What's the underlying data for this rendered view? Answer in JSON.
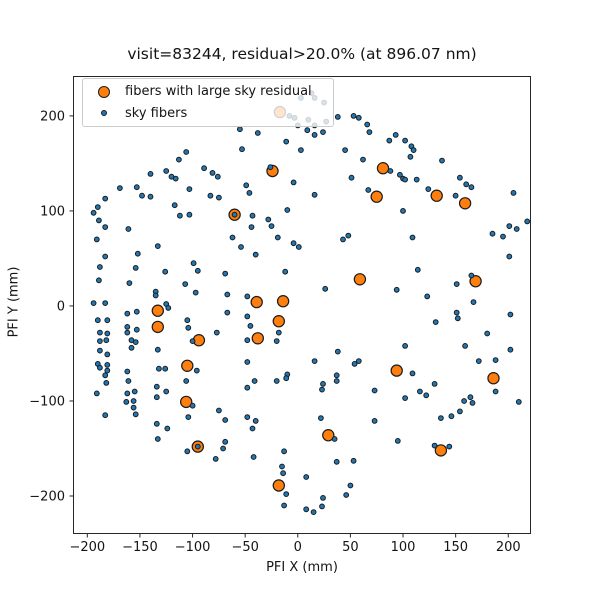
{
  "chart_data": {
    "type": "scatter",
    "title": "visit=83244, residual>20.0% (at 896.07 nm)",
    "xlabel": "PFI X (mm)",
    "ylabel": "PFI Y (mm)",
    "xlim": [
      -213.6,
      221.6
    ],
    "ylim": [
      -240,
      242
    ],
    "grid": false,
    "legend_position": "upper left",
    "xticks": [
      {
        "v": -200,
        "label": "−200"
      },
      {
        "v": -150,
        "label": "−150"
      },
      {
        "v": -100,
        "label": "−100"
      },
      {
        "v": -50,
        "label": "−50"
      },
      {
        "v": 0,
        "label": "0"
      },
      {
        "v": 50,
        "label": "50"
      },
      {
        "v": 100,
        "label": "100"
      },
      {
        "v": 150,
        "label": "150"
      },
      {
        "v": 200,
        "label": "200"
      }
    ],
    "yticks": [
      {
        "v": -200,
        "label": "−200"
      },
      {
        "v": -100,
        "label": "−100"
      },
      {
        "v": 0,
        "label": "0"
      },
      {
        "v": 100,
        "label": "100"
      },
      {
        "v": 200,
        "label": "200"
      }
    ],
    "colors": {
      "residual_fill": "#ff7f0e",
      "sky_fill": "#1f77b4",
      "edge": "#1c1c1c",
      "spine": "#262626"
    },
    "series": [
      {
        "name": "fibers with large sky residual",
        "marker": "circle-large",
        "marker_radius": 5.6,
        "color": "#ff7f0e",
        "points": [
          [
            -24,
            142
          ],
          [
            -60,
            96
          ],
          [
            81,
            145
          ],
          [
            75,
            115
          ],
          [
            132,
            116
          ],
          [
            159,
            108
          ],
          [
            169,
            26
          ],
          [
            59,
            28
          ],
          [
            -133,
            -5
          ],
          [
            -133,
            -22
          ],
          [
            -94,
            -36
          ],
          [
            -105,
            -63
          ],
          [
            -39,
            4
          ],
          [
            -14,
            5
          ],
          [
            -18,
            -16
          ],
          [
            -38,
            -34
          ],
          [
            94,
            -68
          ],
          [
            186,
            -76
          ],
          [
            -106,
            -101
          ],
          [
            -95,
            -148
          ],
          [
            29,
            -136
          ],
          [
            -18,
            -189
          ],
          [
            136,
            -152
          ],
          [
            -17,
            204
          ]
        ]
      },
      {
        "name": "sky fibers",
        "marker": "circle-small",
        "marker_radius": 2.4,
        "color": "#1f77b4",
        "points": [
          [
            -106,
            162
          ],
          [
            -113,
            154
          ],
          [
            -125,
            142
          ],
          [
            -120,
            136
          ],
          [
            -116,
            134
          ],
          [
            -140,
            139
          ],
          [
            -89,
            145
          ],
          [
            -81,
            140
          ],
          [
            -76,
            136
          ],
          [
            -169,
            124
          ],
          [
            -153,
            125
          ],
          [
            -148,
            116
          ],
          [
            -140,
            115
          ],
          [
            -183,
            113
          ],
          [
            -103,
            123
          ],
          [
            -83,
            116
          ],
          [
            -75,
            114
          ],
          [
            -117,
            106
          ],
          [
            -190,
            104
          ],
          [
            -194,
            98
          ],
          [
            -112,
            95
          ],
          [
            -103,
            96
          ],
          [
            -189,
            90
          ],
          [
            38,
            199
          ],
          [
            53,
            200
          ],
          [
            58,
            198
          ],
          [
            66,
            191
          ],
          [
            68,
            183
          ],
          [
            0,
            190
          ],
          [
            9,
            185
          ],
          [
            16,
            180
          ],
          [
            24,
            183
          ],
          [
            -55,
            186
          ],
          [
            -38,
            182
          ],
          [
            -11,
            173
          ],
          [
            3,
            164
          ],
          [
            -53,
            165
          ],
          [
            45,
            164
          ],
          [
            -26,
            146
          ],
          [
            62,
            154
          ],
          [
            51,
            135
          ],
          [
            -49,
            127
          ],
          [
            -46,
            119
          ],
          [
            -4,
            130
          ],
          [
            16,
            117
          ],
          [
            67,
            122
          ],
          [
            -43,
            95
          ],
          [
            -28,
            91
          ],
          [
            -10,
            101
          ],
          [
            -60,
            96
          ],
          [
            87,
            174
          ],
          [
            93,
            180
          ],
          [
            102,
            174
          ],
          [
            108,
            168
          ],
          [
            110,
            164
          ],
          [
            107,
            157
          ],
          [
            137,
            153
          ],
          [
            88,
            142
          ],
          [
            97,
            138
          ],
          [
            100,
            134
          ],
          [
            102,
            133
          ],
          [
            113,
            133
          ],
          [
            124,
            123
          ],
          [
            154,
            135
          ],
          [
            160,
            128
          ],
          [
            165,
            125
          ],
          [
            150,
            116
          ],
          [
            205,
            119
          ],
          [
            218,
            89
          ],
          [
            100,
            100
          ],
          [
            -183,
            83
          ],
          [
            -161,
            81
          ],
          [
            -191,
            70
          ],
          [
            -133,
            63
          ],
          [
            -183,
            52
          ],
          [
            -152,
            55
          ],
          [
            -188,
            41
          ],
          [
            -154,
            40
          ],
          [
            -99,
            45
          ],
          [
            -95,
            37
          ],
          [
            -126,
            36
          ],
          [
            -69,
            34
          ],
          [
            -189,
            27
          ],
          [
            -160,
            24
          ],
          [
            -107,
            23
          ],
          [
            -135,
            15
          ],
          [
            -135,
            11
          ],
          [
            -97,
            14
          ],
          [
            -194,
            3
          ],
          [
            -183,
            3
          ],
          [
            -125,
            2
          ],
          [
            -123,
            -2
          ],
          [
            -162,
            -8
          ],
          [
            -153,
            -6
          ],
          [
            -190,
            -15
          ],
          [
            -181,
            -15
          ],
          [
            -105,
            -15
          ],
          [
            -104,
            -23
          ],
          [
            -188,
            -28
          ],
          [
            -181,
            -29
          ],
          [
            -162,
            -22
          ],
          [
            -162,
            -28
          ],
          [
            -153,
            -25
          ],
          [
            -100,
            -37
          ],
          [
            -77,
            -28
          ],
          [
            -188,
            -37
          ],
          [
            -182,
            -36
          ],
          [
            -158,
            -36
          ],
          [
            -154,
            -38
          ],
          [
            -158,
            -44
          ],
          [
            -188,
            -47
          ],
          [
            -181,
            -51
          ],
          [
            -133,
            -46
          ],
          [
            -190,
            -61
          ],
          [
            -181,
            -62
          ],
          [
            -188,
            -65
          ],
          [
            -181,
            -68
          ],
          [
            -132,
            -66
          ],
          [
            -126,
            -66
          ],
          [
            -96,
            -68
          ],
          [
            -162,
            -69
          ],
          [
            -183,
            -73
          ],
          [
            -44,
            83
          ],
          [
            -25,
            84
          ],
          [
            -62,
            72
          ],
          [
            -54,
            62
          ],
          [
            -19,
            72
          ],
          [
            -4,
            66
          ],
          [
            1,
            62
          ],
          [
            -40,
            54
          ],
          [
            43,
            70
          ],
          [
            48,
            74
          ],
          [
            -12,
            36
          ],
          [
            26,
            18
          ],
          [
            -67,
            12
          ],
          [
            -48,
            10
          ],
          [
            -67,
            -7
          ],
          [
            -48,
            -11
          ],
          [
            -45,
            -21
          ],
          [
            -18,
            -28
          ],
          [
            -20,
            -37
          ],
          [
            -48,
            -36
          ],
          [
            38,
            -48
          ],
          [
            -48,
            -59
          ],
          [
            16,
            -58
          ],
          [
            54,
            -61
          ],
          [
            58,
            -58
          ],
          [
            -10,
            -72
          ],
          [
            37,
            -73
          ],
          [
            109,
            72
          ],
          [
            185,
            76
          ],
          [
            195,
            73
          ],
          [
            201,
            84
          ],
          [
            208,
            81
          ],
          [
            201,
            52
          ],
          [
            114,
            38
          ],
          [
            165,
            32
          ],
          [
            151,
            23
          ],
          [
            94,
            17
          ],
          [
            123,
            10
          ],
          [
            167,
            4
          ],
          [
            151,
            -7
          ],
          [
            152,
            -13
          ],
          [
            131,
            -17
          ],
          [
            202,
            -9
          ],
          [
            180,
            -29
          ],
          [
            102,
            -42
          ],
          [
            159,
            -42
          ],
          [
            202,
            -46
          ],
          [
            172,
            -58
          ],
          [
            188,
            -57
          ],
          [
            109,
            -71
          ],
          [
            -182,
            -81
          ],
          [
            -161,
            -79
          ],
          [
            -191,
            -92
          ],
          [
            -162,
            -92
          ],
          [
            -155,
            -90
          ],
          [
            -163,
            -101
          ],
          [
            -156,
            -100
          ],
          [
            -156,
            -107
          ],
          [
            -134,
            -85
          ],
          [
            -125,
            -90
          ],
          [
            -134,
            -96
          ],
          [
            -183,
            -115
          ],
          [
            -154,
            -114
          ],
          [
            -106,
            -79
          ],
          [
            -100,
            -105
          ],
          [
            -104,
            -117
          ],
          [
            -134,
            -124
          ],
          [
            -124,
            -129
          ],
          [
            -133,
            -140
          ],
          [
            -105,
            -153
          ],
          [
            -75,
            -110
          ],
          [
            -69,
            -120
          ],
          [
            -71,
            -150
          ],
          [
            -78,
            -161
          ],
          [
            -95,
            -148
          ],
          [
            -48,
            -86
          ],
          [
            -41,
            -79
          ],
          [
            -20,
            -79
          ],
          [
            -11,
            -76
          ],
          [
            24,
            -82
          ],
          [
            37,
            -79
          ],
          [
            23,
            -88
          ],
          [
            73,
            -89
          ],
          [
            -48,
            -117
          ],
          [
            -40,
            -121
          ],
          [
            -43,
            -129
          ],
          [
            22,
            -118
          ],
          [
            73,
            -121
          ],
          [
            35,
            -140
          ],
          [
            -69,
            -143
          ],
          [
            -13,
            -153
          ],
          [
            -42,
            -159
          ],
          [
            37,
            -164
          ],
          [
            53,
            -163
          ],
          [
            -15,
            -169
          ],
          [
            -14,
            -176
          ],
          [
            8,
            -180
          ],
          [
            -11,
            -198
          ],
          [
            50,
            -189
          ],
          [
            46,
            -199
          ],
          [
            24,
            -202
          ],
          [
            23,
            -211
          ],
          [
            -13,
            -210
          ],
          [
            8,
            -214
          ],
          [
            15,
            -217
          ],
          [
            130,
            -82
          ],
          [
            116,
            -90
          ],
          [
            122,
            -94
          ],
          [
            102,
            -97
          ],
          [
            188,
            -90
          ],
          [
            158,
            -100
          ],
          [
            164,
            -96
          ],
          [
            166,
            -102
          ],
          [
            210,
            -101
          ],
          [
            154,
            -111
          ],
          [
            146,
            -116
          ],
          [
            136,
            -118
          ],
          [
            95,
            -142
          ],
          [
            130,
            -147
          ],
          [
            144,
            -148
          ],
          [
            3,
            219
          ],
          [
            13,
            224
          ],
          [
            16,
            219
          ],
          [
            25,
            214
          ],
          [
            -8,
            200
          ],
          [
            -3,
            198
          ],
          [
            10,
            196
          ],
          [
            16,
            190
          ],
          [
            27,
            194
          ]
        ]
      }
    ]
  }
}
